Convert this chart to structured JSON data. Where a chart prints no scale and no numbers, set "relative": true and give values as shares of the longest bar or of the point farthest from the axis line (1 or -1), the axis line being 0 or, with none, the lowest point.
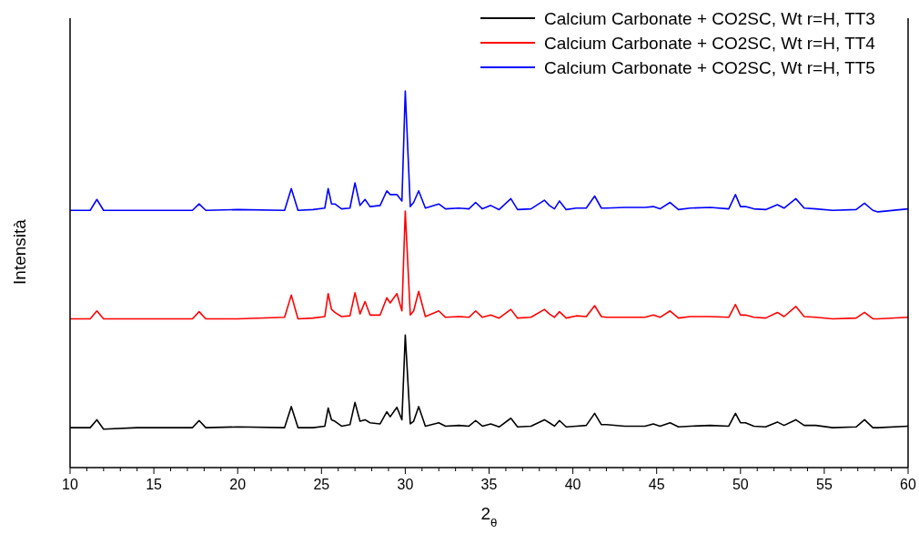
{
  "chart_data": {
    "type": "line",
    "relative": true,
    "xlabel": "2$_{θ}$",
    "ylabel": "Intensità",
    "legend": "top right",
    "xlim": [
      10,
      60
    ],
    "xticks": [
      10,
      {
        "value": 11,
        "label": null
      },
      {
        "value": 12,
        "label": null
      },
      {
        "value": 13,
        "label": null
      },
      {
        "value": 14,
        "label": null
      },
      15,
      {
        "value": 16,
        "label": null
      },
      {
        "value": 17,
        "label": null
      },
      {
        "value": 18,
        "label": null
      },
      {
        "value": 19,
        "label": null
      },
      20,
      {
        "value": 21,
        "label": null
      },
      {
        "value": 22,
        "label": null
      },
      {
        "value": 23,
        "label": null
      },
      {
        "value": 24,
        "label": null
      },
      25,
      {
        "value": 26,
        "label": null
      },
      {
        "value": 27,
        "label": null
      },
      {
        "value": 28,
        "label": null
      },
      {
        "value": 29,
        "label": null
      },
      30,
      {
        "value": 31,
        "label": null
      },
      {
        "value": 32,
        "label": null
      },
      {
        "value": 33,
        "label": null
      },
      {
        "value": 34,
        "label": null
      },
      35,
      {
        "value": 36,
        "label": null
      },
      {
        "value": 37,
        "label": null
      },
      {
        "value": 38,
        "label": null
      },
      {
        "value": 39,
        "label": null
      },
      40,
      {
        "value": 41,
        "label": null
      },
      {
        "value": 42,
        "label": null
      },
      {
        "value": 43,
        "label": null
      },
      {
        "value": 44,
        "label": null
      },
      45,
      {
        "value": 46,
        "label": null
      },
      {
        "value": 47,
        "label": null
      },
      {
        "value": 48,
        "label": null
      },
      {
        "value": 49,
        "label": null
      },
      50,
      {
        "value": 51,
        "label": null
      },
      {
        "value": 52,
        "label": null
      },
      {
        "value": 53,
        "label": null
      },
      {
        "value": 54,
        "label": null
      },
      55,
      {
        "value": 56,
        "label": null
      },
      {
        "value": 57,
        "label": null
      },
      {
        "value": 58,
        "label": null
      },
      {
        "value": 59,
        "label": null
      },
      60
    ],
    "x": [
      10.0,
      11.2,
      11.6,
      12.0,
      14.0,
      17.3,
      17.7,
      18.1,
      20.0,
      22.8,
      23.2,
      23.6,
      24.5,
      25.2,
      25.4,
      25.6,
      25.8,
      26.2,
      26.7,
      27.0,
      27.3,
      27.6,
      27.9,
      28.5,
      28.9,
      29.1,
      29.5,
      29.8,
      30.0,
      30.3,
      30.5,
      30.8,
      31.2,
      32.0,
      32.4,
      33.2,
      33.8,
      34.2,
      34.6,
      35.1,
      35.6,
      36.3,
      36.7,
      37.5,
      38.3,
      38.6,
      38.9,
      39.2,
      39.6,
      40.2,
      40.8,
      41.3,
      41.7,
      42.0,
      43.1,
      44.3,
      44.8,
      45.2,
      45.8,
      46.3,
      47.0,
      48.2,
      49.3,
      49.7,
      50.0,
      50.3,
      50.8,
      51.5,
      52.2,
      52.6,
      53.3,
      53.8,
      54.5,
      55.5,
      56.9,
      57.4,
      57.9,
      58.2,
      60.0
    ],
    "series": [
      {
        "name": "Calcium Carbonate + CO2SC, Wt r=H, TT3",
        "color": "#000000",
        "values": [
          0.106,
          0.106,
          0.127,
          0.102,
          0.106,
          0.106,
          0.125,
          0.106,
          0.108,
          0.106,
          0.162,
          0.106,
          0.106,
          0.11,
          0.158,
          0.127,
          0.123,
          0.11,
          0.114,
          0.173,
          0.123,
          0.127,
          0.119,
          0.116,
          0.148,
          0.135,
          0.16,
          0.127,
          0.352,
          0.116,
          0.123,
          0.162,
          0.11,
          0.119,
          0.11,
          0.112,
          0.11,
          0.125,
          0.11,
          0.116,
          0.108,
          0.131,
          0.108,
          0.11,
          0.127,
          0.119,
          0.11,
          0.125,
          0.108,
          0.11,
          0.112,
          0.144,
          0.114,
          0.114,
          0.11,
          0.11,
          0.116,
          0.11,
          0.119,
          0.108,
          0.11,
          0.112,
          0.11,
          0.144,
          0.119,
          0.119,
          0.11,
          0.108,
          0.121,
          0.112,
          0.127,
          0.112,
          0.112,
          0.106,
          0.108,
          0.127,
          0.106,
          0.106,
          0.11
        ]
      },
      {
        "name": "Calcium Carbonate + CO2SC, Wt r=H, TT4",
        "color": "#ff0000",
        "values": [
          0.395,
          0.395,
          0.416,
          0.395,
          0.395,
          0.395,
          0.414,
          0.395,
          0.395,
          0.399,
          0.458,
          0.395,
          0.397,
          0.401,
          0.462,
          0.42,
          0.412,
          0.401,
          0.403,
          0.464,
          0.408,
          0.441,
          0.405,
          0.405,
          0.451,
          0.437,
          0.462,
          0.416,
          0.681,
          0.405,
          0.416,
          0.468,
          0.401,
          0.416,
          0.399,
          0.401,
          0.399,
          0.416,
          0.399,
          0.405,
          0.397,
          0.42,
          0.397,
          0.399,
          0.42,
          0.408,
          0.399,
          0.414,
          0.397,
          0.403,
          0.401,
          0.43,
          0.401,
          0.399,
          0.399,
          0.399,
          0.405,
          0.399,
          0.416,
          0.397,
          0.401,
          0.401,
          0.399,
          0.433,
          0.405,
          0.405,
          0.399,
          0.397,
          0.412,
          0.401,
          0.428,
          0.401,
          0.399,
          0.395,
          0.397,
          0.412,
          0.395,
          0.395,
          0.399
        ]
      },
      {
        "name": "Calcium Carbonate + CO2SC, Wt r=H, TT5",
        "color": "#0000ff",
        "values": [
          0.683,
          0.683,
          0.712,
          0.683,
          0.683,
          0.683,
          0.7,
          0.683,
          0.685,
          0.683,
          0.741,
          0.683,
          0.685,
          0.689,
          0.741,
          0.7,
          0.7,
          0.687,
          0.689,
          0.756,
          0.696,
          0.712,
          0.693,
          0.696,
          0.735,
          0.725,
          0.725,
          0.708,
          1.0,
          0.693,
          0.704,
          0.735,
          0.689,
          0.7,
          0.687,
          0.689,
          0.687,
          0.704,
          0.687,
          0.696,
          0.685,
          0.714,
          0.685,
          0.687,
          0.71,
          0.696,
          0.687,
          0.708,
          0.685,
          0.689,
          0.689,
          0.721,
          0.689,
          0.689,
          0.691,
          0.691,
          0.693,
          0.687,
          0.704,
          0.685,
          0.689,
          0.691,
          0.687,
          0.725,
          0.693,
          0.693,
          0.687,
          0.685,
          0.698,
          0.689,
          0.714,
          0.689,
          0.687,
          0.683,
          0.685,
          0.702,
          0.683,
          0.679,
          0.687
        ]
      }
    ]
  }
}
